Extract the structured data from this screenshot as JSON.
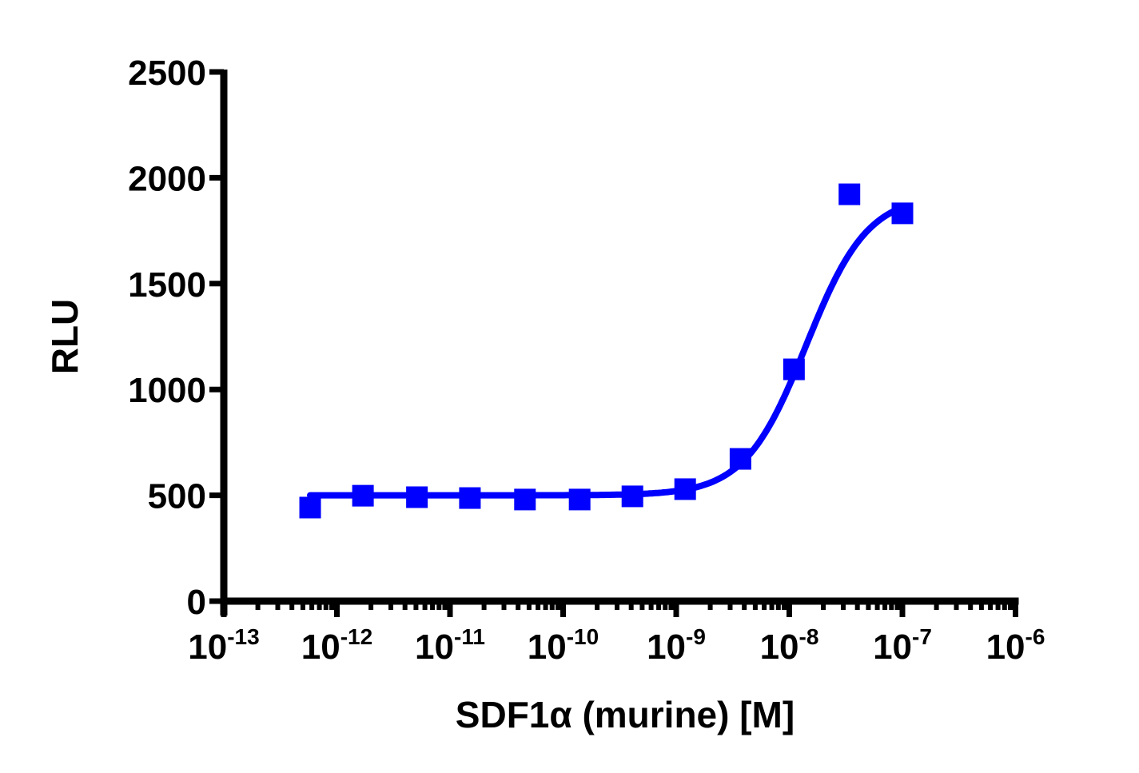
{
  "chart_data": {
    "type": "scatter",
    "title": "",
    "xlabel": "SDF1α  (murine) [M]",
    "ylabel": "RLU",
    "xscale": "log",
    "xlim": [
      1e-13,
      1e-06
    ],
    "ylim": [
      0,
      2500
    ],
    "grid": false,
    "legend": null,
    "x_tick_labels": [
      {
        "base": "10",
        "exp": "-13"
      },
      {
        "base": "10",
        "exp": "-12"
      },
      {
        "base": "10",
        "exp": "-11"
      },
      {
        "base": "10",
        "exp": "-10"
      },
      {
        "base": "10",
        "exp": "-9"
      },
      {
        "base": "10",
        "exp": "-8"
      },
      {
        "base": "10",
        "exp": "-7"
      },
      {
        "base": "10",
        "exp": "-6"
      }
    ],
    "y_ticks": [
      0,
      500,
      1000,
      1500,
      2000,
      2500
    ],
    "series": [
      {
        "name": "SDF1α (murine)",
        "color": "#0000ff",
        "marker": "square",
        "x": [
          5.8e-13,
          1.7e-12,
          5.1e-12,
          1.5e-11,
          4.6e-11,
          1.4e-10,
          4.1e-10,
          1.2e-09,
          3.7e-09,
          1.1e-08,
          3.4e-08,
          1e-07
        ],
        "y": [
          442,
          498,
          491,
          487,
          480,
          480,
          495,
          529,
          672,
          1095,
          1922,
          1832
        ],
        "y_err": [
          0,
          0,
          0,
          0,
          0,
          0,
          0,
          0,
          0,
          0,
          65,
          80
        ]
      }
    ],
    "fit_curve": {
      "model": "sigmoidal dose-response",
      "bottom": 500,
      "top": 1920,
      "log_ec50": -7.85,
      "hill_slope": 1.6,
      "color": "#0000ff"
    }
  }
}
